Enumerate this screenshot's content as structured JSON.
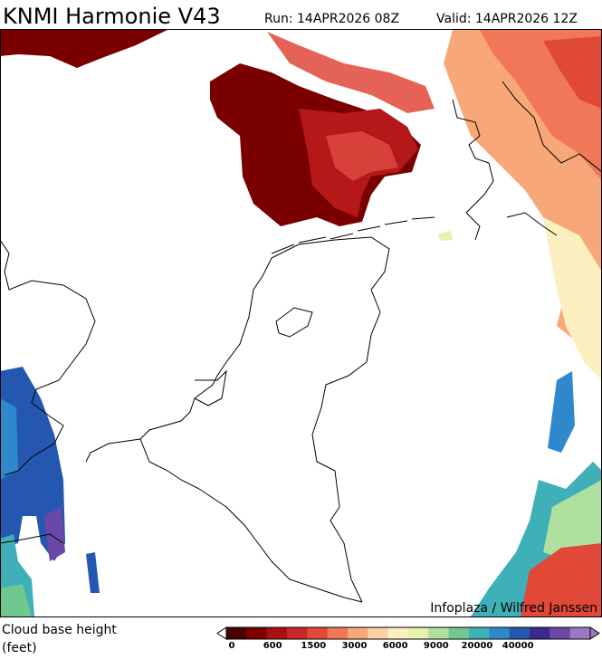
{
  "header": {
    "title": "KNMI Harmonie V43",
    "run": "Run: 14APR2026 08Z",
    "valid": "Valid: 14APR2026 12Z"
  },
  "map": {
    "credit": "Infoplaza / Wilfred Janssen"
  },
  "legend": {
    "label": "Cloud base height",
    "unit": "(feet)",
    "ticks": [
      "0",
      "600",
      "1500",
      "3000",
      "6000",
      "9000",
      "20000",
      "40000"
    ],
    "colors": [
      "#4a0000",
      "#800000",
      "#a81010",
      "#c82828",
      "#e04838",
      "#f07858",
      "#f8a878",
      "#fcd0a0",
      "#fcf0c0",
      "#e8f0b0",
      "#b0e0a0",
      "#70c890",
      "#40b0b8",
      "#3088cc",
      "#2458b0",
      "#3a2a90",
      "#6a48a8",
      "#9a7ac0"
    ]
  }
}
